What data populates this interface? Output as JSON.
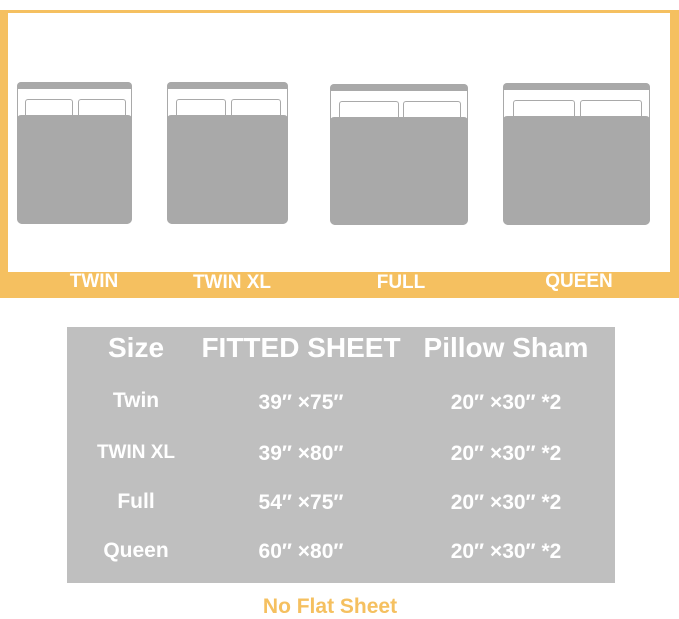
{
  "colors": {
    "accent": "#f5c060",
    "table_bg": "#bfbfbf",
    "bed": "#a9a9a9"
  },
  "beds": [
    {
      "label": "TWIN"
    },
    {
      "label": "TWIN XL"
    },
    {
      "label": "FULL"
    },
    {
      "label": "QUEEN"
    }
  ],
  "table": {
    "headers": [
      "Size",
      "FITTED SHEET",
      "Pillow Sham"
    ],
    "rows": [
      [
        "Twin",
        "39″ ×75″",
        "20″ ×30″ *2"
      ],
      [
        "TWIN XL",
        "39″ ×80″",
        "20″ ×30″ *2"
      ],
      [
        "Full",
        "54″ ×75″",
        "20″ ×30″ *2"
      ],
      [
        "Queen",
        "60″ ×80″",
        "20″ ×30″ *2"
      ]
    ]
  },
  "note": "No Flat Sheet"
}
